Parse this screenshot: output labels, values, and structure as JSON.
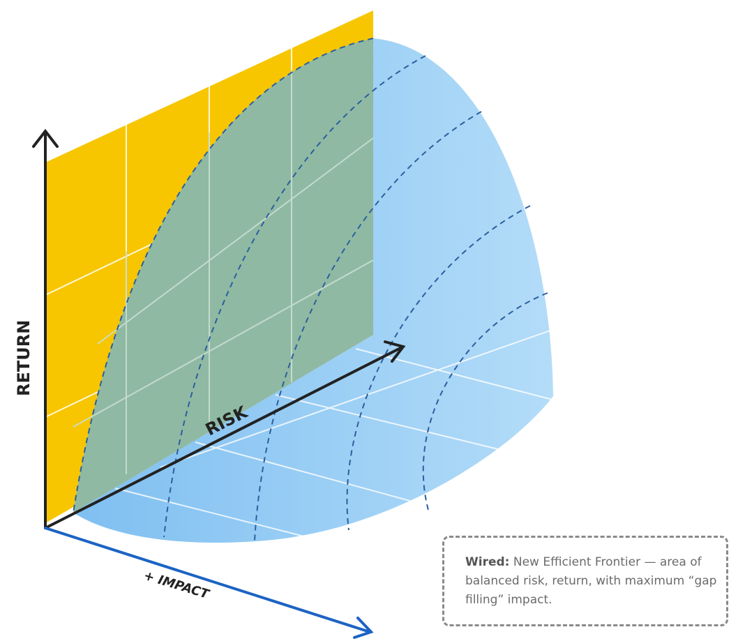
{
  "axes": {
    "return_label": "RETURN",
    "risk_label": "RISK",
    "impact_label": "+ IMPACT"
  },
  "note": {
    "title": "Wired:",
    "body": "New Efficient Frontier — area of balanced risk, return, with maximum “gap filling” impact."
  },
  "colors": {
    "return_plane": "#f7c600",
    "frontier_overlap": "#8fb9a3",
    "frontier_volume": "#90c8f3",
    "risk_axis": "#222222",
    "impact_axis": "#1c63c4",
    "note_border": "#8a8a8a"
  }
}
